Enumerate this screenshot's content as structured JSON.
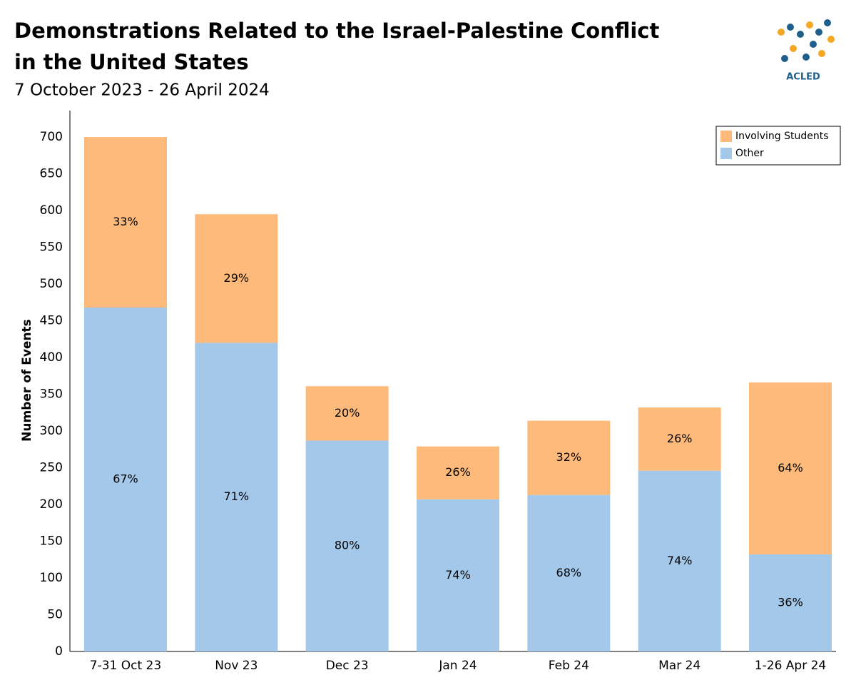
{
  "chart_data": {
    "type": "stacked_bar",
    "title": "Demonstrations Related to the Israel-Palestine Conflict",
    "title_line2": "in the United States",
    "subtitle": "7 October 2023 - 26 April 2024",
    "y_label": "Number of Events",
    "logo_text": "ACLED",
    "categories": [
      "7-31 Oct 23",
      "Nov 23",
      "Dec 23",
      "Jan 24",
      "Feb 24",
      "Mar 24",
      "1-26 Apr 24"
    ],
    "series": [
      {
        "name": "Other",
        "color": "#a3c8ea",
        "values": [
          468,
          420,
          287,
          207,
          213,
          246,
          132
        ],
        "percent_labels": [
          "67%",
          "71%",
          "80%",
          "74%",
          "68%",
          "74%",
          "36%"
        ]
      },
      {
        "name": "Involving Students",
        "color": "#fdba7a",
        "values": [
          232,
          175,
          74,
          72,
          101,
          86,
          234
        ],
        "percent_labels": [
          "33%",
          "29%",
          "20%",
          "26%",
          "32%",
          "26%",
          "64%"
        ]
      }
    ],
    "ylim": [
      0,
      736
    ],
    "yticks": [
      0,
      50,
      100,
      150,
      200,
      250,
      300,
      350,
      400,
      450,
      500,
      550,
      600,
      650,
      700
    ],
    "grid": false,
    "legend": "top-right"
  }
}
